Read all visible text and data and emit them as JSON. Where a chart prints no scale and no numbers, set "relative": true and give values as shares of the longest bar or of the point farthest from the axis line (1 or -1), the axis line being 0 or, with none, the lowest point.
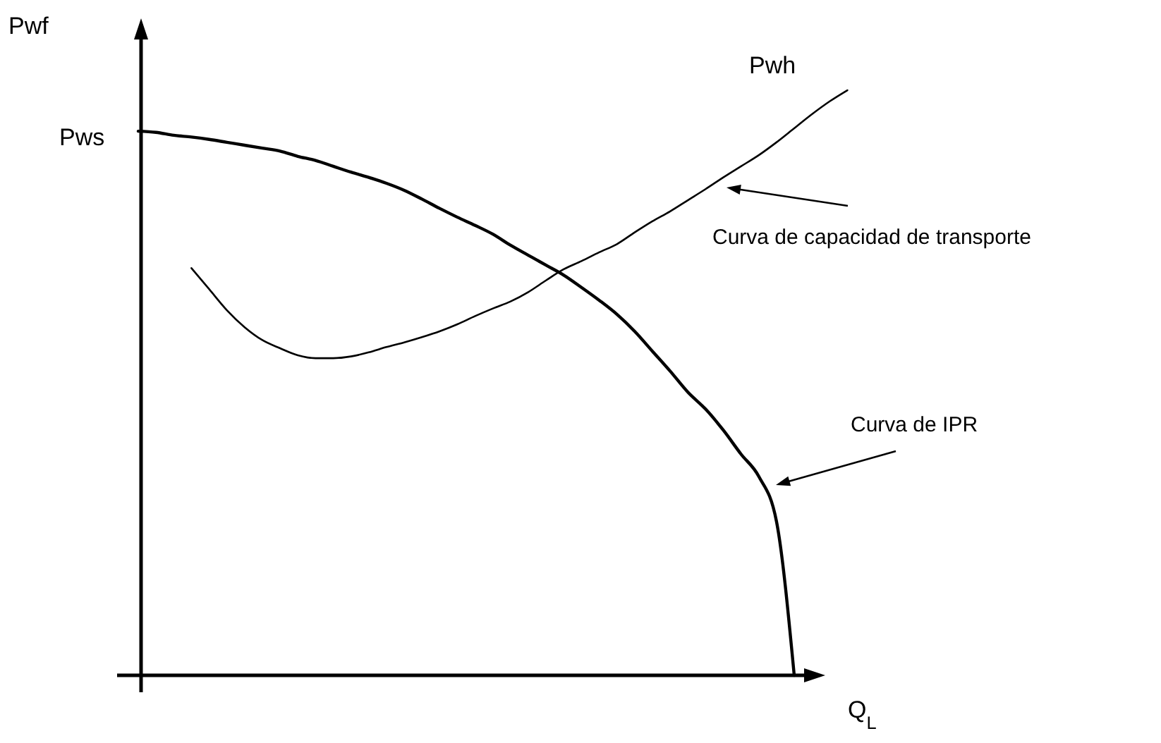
{
  "chart_data": {
    "type": "line",
    "relative": true,
    "xlabel": "Q$_{L}$",
    "ylabel": "Pwf",
    "categories": [
      null,
      null,
      null,
      null,
      null,
      null,
      null,
      null,
      null,
      null,
      null,
      null,
      null,
      null,
      null,
      null,
      null,
      null,
      null,
      null,
      null,
      null,
      null,
      null,
      null,
      null,
      null,
      null,
      null,
      null,
      null,
      null,
      null,
      null,
      null,
      null,
      null,
      null,
      null,
      null,
      null
    ],
    "series": [
      {
        "name": "Curva de IPR",
        "color": "#000000",
        "values": [
          0.93,
          0.928,
          0.923,
          0.92,
          0.916,
          0.911,
          0.906,
          0.901,
          0.896,
          0.887,
          0.88,
          0.87,
          0.86,
          0.851,
          0.841,
          0.829,
          0.814,
          0.798,
          0.783,
          0.769,
          0.754,
          0.735,
          0.718,
          0.701,
          0.684,
          0.663,
          0.641,
          0.617,
          0.588,
          0.554,
          0.52,
          0.484,
          0.455,
          0.419,
          0.378,
          0.34,
          0.263,
          0,
          null,
          null,
          null
        ]
      },
      {
        "name": "Curva de capacidad de transporte",
        "color": "#000000",
        "values": [
          null,
          null,
          null,
          0.696,
          0.66,
          0.624,
          0.595,
          0.573,
          0.559,
          0.547,
          0.542,
          0.542,
          0.545,
          0.552,
          0.561,
          0.569,
          0.578,
          0.588,
          0.6,
          0.614,
          0.627,
          0.639,
          0.655,
          0.675,
          0.694,
          0.708,
          0.723,
          0.737,
          0.757,
          0.776,
          0.793,
          0.812,
          0.831,
          0.851,
          0.87,
          0.889,
          0.911,
          0.935,
          0.959,
          0.981,
          1
        ]
      }
    ],
    "annotations": [
      "Pws",
      "Pwh"
    ]
  }
}
